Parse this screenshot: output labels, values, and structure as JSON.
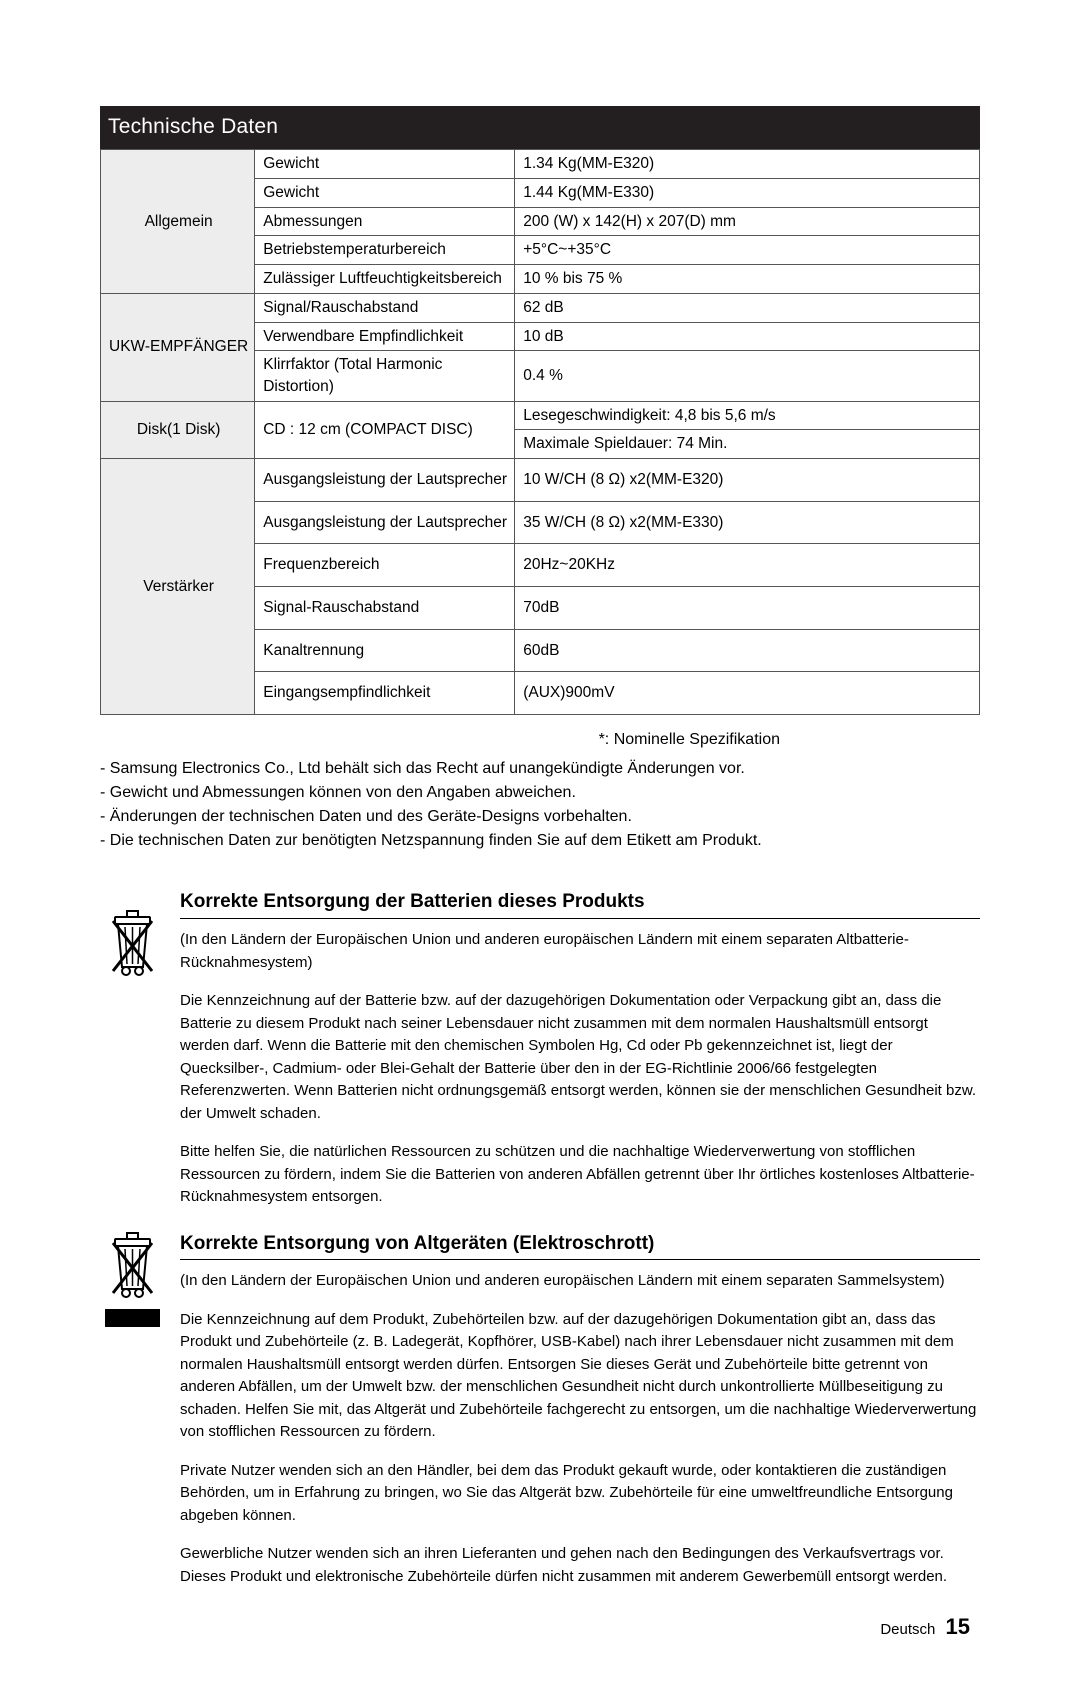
{
  "header": {
    "title": "Technische Daten"
  },
  "specs": {
    "groups": [
      {
        "name": "Allgemein",
        "rowspan": 5,
        "rows": [
          {
            "label": "Gewicht",
            "value": "1.34 Kg(MM-E320)"
          },
          {
            "label": "Gewicht",
            "value": "1.44 Kg(MM-E330)"
          },
          {
            "label": "Abmessungen",
            "value": "200 (W) x 142(H) x 207(D) mm"
          },
          {
            "label": "Betriebstemperaturbereich",
            "value": "+5°C~+35°C"
          },
          {
            "label": "Zulässiger Luftfeuchtigkeitsbereich",
            "value": "10 % bis 75 %"
          }
        ]
      },
      {
        "name": "UKW-EMPFÄNGER",
        "rowspan": 3,
        "rows": [
          {
            "label": "Signal/Rauschabstand",
            "value": "62 dB"
          },
          {
            "label": "Verwendbare Empfindlichkeit",
            "value": "10 dB"
          },
          {
            "label": "Klirrfaktor (Total Harmonic Distortion)",
            "value": "0.4 %"
          }
        ]
      },
      {
        "name": "Disk(1 Disk)",
        "rowspan": 2,
        "rows": [
          {
            "label": "CD : 12 cm (COMPACT DISC)",
            "label_rowspan": 2,
            "value": "Lesegeschwindigkeit: 4,8 bis 5,6 m/s"
          },
          {
            "value": "Maximale Spieldauer: 74 Min."
          }
        ]
      },
      {
        "name": "Verstärker",
        "rowspan": 6,
        "tall": true,
        "rows": [
          {
            "label": "Ausgangsleistung der Lautsprecher",
            "value": "10 W/CH (8 Ω) x2(MM-E320)"
          },
          {
            "label": "Ausgangsleistung der Lautsprecher",
            "value": "35 W/CH (8 Ω) x2(MM-E330)"
          },
          {
            "label": "Frequenzbereich",
            "value": "20Hz~20KHz"
          },
          {
            "label": "Signal-Rauschabstand",
            "value": "70dB"
          },
          {
            "label": "Kanaltrennung",
            "value": "60dB"
          },
          {
            "label": "Eingangsempfindlichkeit",
            "value": "(AUX)900mV"
          }
        ]
      }
    ]
  },
  "footnote": "*: Nominelle Spezifikation",
  "bullets": [
    "- Samsung Electronics Co., Ltd behält sich das Recht auf unangekündigte Änderungen vor.",
    "- Gewicht und Abmessungen können von den Angaben abweichen.",
    "- Änderungen der technischen Daten und des Geräte-Designs vorbehalten.",
    "- Die technischen Daten zur benötigten Netzspannung finden Sie auf dem Etikett am Produkt."
  ],
  "battery": {
    "title": "Korrekte Entsorgung der Batterien dieses Produkts",
    "p1": "(In den Ländern der Europäischen Union und anderen europäischen Ländern mit einem separaten Altbatterie-Rücknahmesystem)",
    "p2": "Die Kennzeichnung auf der Batterie bzw. auf der dazugehörigen Dokumentation oder Verpackung gibt an, dass die Batterie zu diesem Produkt nach seiner Lebensdauer nicht zusammen mit dem normalen Haushaltsmüll entsorgt werden darf. Wenn die Batterie mit den chemischen Symbolen Hg, Cd oder Pb gekennzeichnet ist, liegt der Quecksilber-, Cadmium- oder Blei-Gehalt der Batterie über den in der EG-Richtlinie 2006/66 festgelegten Referenzwerten. Wenn Batterien nicht ordnungsgemäß entsorgt werden, können sie der menschlichen Gesundheit bzw. der Umwelt schaden.",
    "p3": "Bitte helfen Sie, die natürlichen Ressourcen zu schützen und die nachhaltige Wiederverwertung von stofflichen Ressourcen zu fördern, indem Sie die Batterien von anderen Abfällen getrennt über Ihr örtliches kostenloses Altbatterie-Rücknahmesystem entsorgen."
  },
  "weee": {
    "title": "Korrekte Entsorgung von Altgeräten (Elektroschrott)",
    "p1": "(In den Ländern der Europäischen Union und anderen europäischen Ländern mit einem separaten Sammelsystem)",
    "p2": "Die Kennzeichnung auf dem Produkt, Zubehörteilen bzw. auf der dazugehörigen Dokumentation gibt an, dass das Produkt und Zubehörteile (z. B. Ladegerät, Kopfhörer, USB-Kabel) nach ihrer Lebensdauer nicht zusammen mit dem normalen Haushaltsmüll entsorgt werden dürfen. Entsorgen Sie dieses Gerät und Zubehörteile bitte getrennt von anderen Abfällen, um der Umwelt bzw. der menschlichen Gesundheit nicht durch unkontrollierte Müllbeseitigung zu schaden. Helfen Sie mit, das Altgerät und Zubehörteile fachgerecht zu entsorgen, um die nachhaltige Wiederverwertung von stofflichen Ressourcen zu fördern.",
    "p3": "Private Nutzer wenden sich an den Händler, bei dem das Produkt gekauft wurde, oder kontaktieren die zuständigen Behörden, um in Erfahrung zu bringen, wo Sie das Altgerät bzw. Zubehörteile für eine umweltfreundliche Entsorgung abgeben können.",
    "p4": "Gewerbliche Nutzer wenden sich an ihren Lieferanten und gehen nach den Bedingungen des Verkaufsvertrags vor. Dieses Produkt und elektronische Zubehörteile dürfen nicht zusammen mit anderem Gewerbemüll entsorgt werden."
  },
  "footer": {
    "lang": "Deutsch",
    "page": "15"
  }
}
